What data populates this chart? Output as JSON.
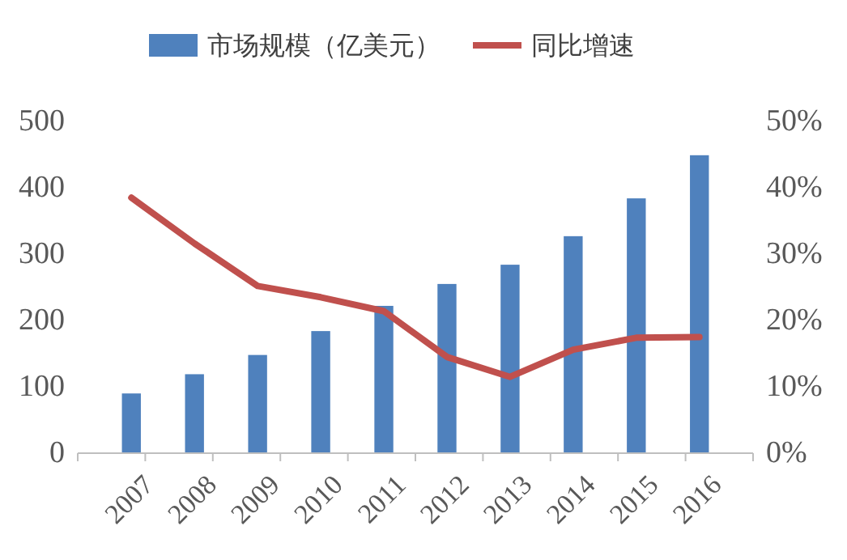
{
  "chart_data": {
    "type": "bar",
    "categories": [
      "2007",
      "2008",
      "2009",
      "2010",
      "2011",
      "2012",
      "2013",
      "2014",
      "2015",
      "2016"
    ],
    "series": [
      {
        "name": "市场规模（亿美元）",
        "color": "#4f81bd",
        "values": [
          90,
          119,
          148,
          184,
          222,
          255,
          284,
          327,
          384,
          449
        ]
      },
      {
        "name": "同比增速",
        "type": "line",
        "axis": "y2",
        "color": "#c0504d",
        "values": [
          38.5,
          31.6,
          25.2,
          23.5,
          21.4,
          14.5,
          11.5,
          15.6,
          17.4,
          17.5
        ]
      }
    ],
    "ylim": [
      0,
      500
    ],
    "yticks": [
      0,
      100,
      200,
      300,
      400,
      500
    ],
    "y2lim": [
      0,
      50
    ],
    "y2ticks": [
      {
        "value": 0,
        "label": "0%"
      },
      {
        "value": 10,
        "label": "10%"
      },
      {
        "value": 20,
        "label": "20%"
      },
      {
        "value": 30,
        "label": "30%"
      },
      {
        "value": 40,
        "label": "40%"
      },
      {
        "value": 50,
        "label": "50%"
      }
    ],
    "legend": "top",
    "grid": false
  }
}
